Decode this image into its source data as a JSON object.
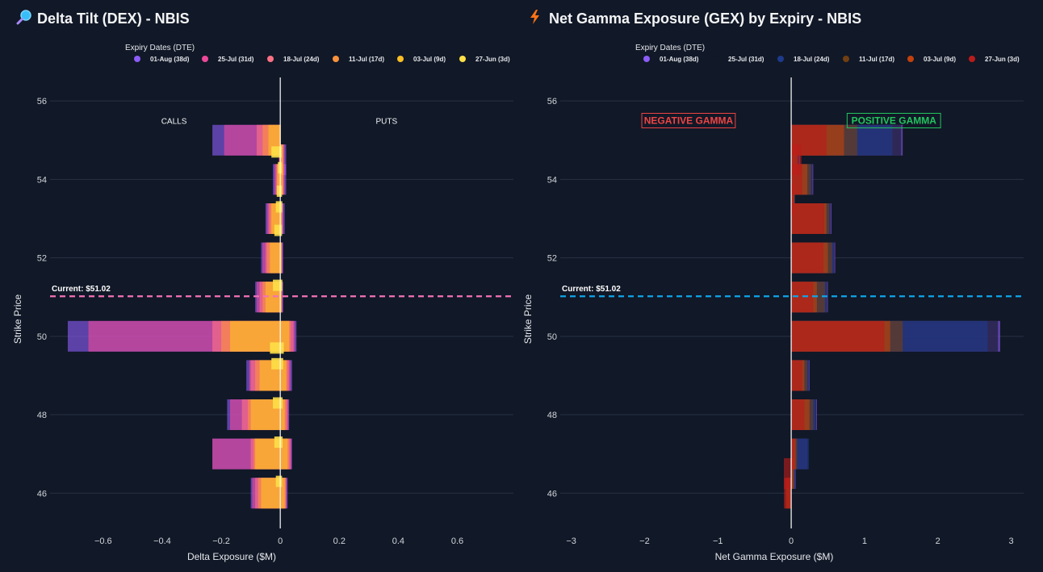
{
  "chart_data": [
    {
      "type": "bar",
      "orientation": "horizontal",
      "barmode": "overlay",
      "title": "Delta Tilt (DEX) - NBIS",
      "title_icon": "magnifier-icon",
      "xlabel": "Delta Exposure ($M)",
      "ylabel": "Strike Price",
      "xlim": [
        -0.78,
        0.79
      ],
      "ylim": [
        45.1,
        56.6
      ],
      "xticks": [
        -0.6,
        -0.4,
        -0.2,
        0,
        0.2,
        0.4,
        0.6
      ],
      "xtick_labels": [
        "−0.6",
        "−0.4",
        "−0.2",
        "0",
        "0.2",
        "0.4",
        "0.6"
      ],
      "yticks": [
        46,
        48,
        50,
        52,
        54,
        56
      ],
      "legend_title": "Expiry Dates (DTE)",
      "legend_placement": "top",
      "annotations": [
        {
          "text": "CALLS",
          "x": -0.36,
          "y": 55.5
        },
        {
          "text": "PUTS",
          "x": 0.36,
          "y": 55.5
        }
      ],
      "current_price": {
        "label": "Current: $51.02",
        "value": 51.02,
        "color": "#f472b6"
      },
      "series": [
        {
          "name": "01-Aug (38d)",
          "color": "#8b5cf6",
          "x": [
            -0.23,
            0.01,
            -0.025,
            -0.05,
            -0.065,
            -0.085,
            -0.72,
            -0.115,
            -0.18,
            -0.23,
            -0.1,
            -0.01,
            0.02,
            0.02,
            0.015,
            0.01,
            0.01,
            0.055,
            0.04,
            0.03,
            0.04,
            0.025
          ],
          "y": [
            55,
            54.5,
            54,
            53,
            52,
            51,
            50,
            49,
            48,
            47,
            46,
            55,
            54.5,
            54,
            53,
            52,
            51,
            50,
            49,
            48,
            47,
            46
          ]
        },
        {
          "name": "25-Jul (31d)",
          "color": "#ec4899",
          "x": [
            -0.19,
            -0.005,
            -0.02,
            -0.045,
            -0.06,
            -0.08,
            -0.65,
            -0.105,
            -0.17,
            -0.23,
            -0.095,
            -0.005,
            0.015,
            0.015,
            0.01,
            0.008,
            0.008,
            0.05,
            0.035,
            0.028,
            0.038,
            0.022
          ],
          "y": [
            55,
            54.5,
            54,
            53,
            52,
            51,
            50,
            49,
            48,
            47,
            46,
            55,
            54.5,
            54,
            53,
            52,
            51,
            50,
            49,
            48,
            47,
            46
          ]
        },
        {
          "name": "18-Jul (24d)",
          "color": "#fb7185",
          "x": [
            -0.08,
            -0.003,
            -0.015,
            -0.04,
            -0.05,
            -0.07,
            -0.23,
            -0.1,
            -0.13,
            -0.1,
            -0.085,
            -0.003,
            0.012,
            0.012,
            0.008,
            0.006,
            0.006,
            0.045,
            0.03,
            0.025,
            0.035,
            0.02
          ],
          "y": [
            55,
            54.5,
            54,
            53,
            52,
            51,
            50,
            49,
            48,
            47,
            46,
            55,
            54.5,
            54,
            53,
            52,
            51,
            50,
            49,
            48,
            47,
            46
          ]
        },
        {
          "name": "11-Jul (17d)",
          "color": "#fb923c",
          "x": [
            -0.06,
            -0.002,
            -0.012,
            -0.035,
            -0.045,
            -0.06,
            -0.2,
            -0.085,
            -0.11,
            -0.09,
            -0.075,
            -0.002,
            0.01,
            0.01,
            0.006,
            0.005,
            0.005,
            0.035,
            0.025,
            0.02,
            0.03,
            0.018
          ],
          "y": [
            55,
            54.5,
            54,
            53,
            52,
            51,
            50,
            49,
            48,
            47,
            46,
            55,
            54.5,
            54,
            53,
            52,
            51,
            50,
            49,
            48,
            47,
            46
          ]
        },
        {
          "name": "03-Jul (9d)",
          "color": "#fbbf24",
          "x": [
            -0.04,
            -0.002,
            -0.01,
            -0.03,
            -0.035,
            -0.05,
            -0.17,
            -0.07,
            -0.1,
            -0.085,
            -0.065,
            -0.001,
            0.008,
            0.008,
            0.005,
            0.004,
            0.004,
            0.03,
            0.02,
            0.015,
            0.025,
            0.015
          ],
          "y": [
            55,
            54.5,
            54,
            53,
            52,
            51,
            50,
            49,
            48,
            47,
            46,
            55,
            54.5,
            54,
            53,
            52,
            51,
            50,
            49,
            48,
            47,
            46
          ]
        },
        {
          "name": "27-Jun (3d)",
          "color": "#fde047",
          "x": [
            -0.03,
            -0.008,
            -0.012,
            -0.015,
            -0.02,
            -0.025,
            -0.035,
            -0.03,
            -0.025,
            -0.02,
            -0.015,
            0.005,
            0.006,
            0.006,
            0.007,
            0.006,
            0.007,
            0.012,
            0.01,
            0.008,
            0.008,
            0.006
          ],
          "y": [
            54.7,
            54.3,
            53.7,
            53.3,
            52.7,
            51.3,
            49.7,
            49.3,
            48.3,
            47.3,
            46.3,
            54.7,
            54.3,
            53.7,
            53.3,
            52.7,
            51.3,
            49.7,
            49.3,
            48.3,
            47.3,
            46.3
          ]
        }
      ]
    },
    {
      "type": "bar",
      "orientation": "horizontal",
      "barmode": "overlay",
      "title": "Net Gamma Exposure (GEX) by Expiry - NBIS",
      "title_icon": "lightning-icon",
      "xlabel": "Net Gamma Exposure ($M)",
      "ylabel": "Strike Price",
      "xlim": [
        -3.15,
        3.17
      ],
      "ylim": [
        45.1,
        56.6
      ],
      "xticks": [
        -3,
        -2,
        -1,
        0,
        1,
        2,
        3
      ],
      "xtick_labels": [
        "−3",
        "−2",
        "−1",
        "0",
        "1",
        "2",
        "3"
      ],
      "yticks": [
        46,
        48,
        50,
        52,
        54,
        56
      ],
      "legend_title": "Expiry Dates (DTE)",
      "legend_placement": "top",
      "annotations": [
        {
          "text": "NEGATIVE GAMMA",
          "color": "#ef4444",
          "x": -1.4,
          "y": 55.5
        },
        {
          "text": "POSITIVE GAMMA",
          "color": "#22c55e",
          "x": 1.4,
          "y": 55.5
        }
      ],
      "current_price": {
        "label": "Current: $51.02",
        "value": 51.02,
        "color": "#0ea5e9"
      },
      "series": [
        {
          "name": "01-Aug (38d)",
          "color": "#8b5cf6",
          "x": [
            1.52,
            0.12,
            0.3,
            0.05,
            0.55,
            0.6,
            0.5,
            2.85,
            0.25,
            0.35,
            0.22,
            0.06,
            -0.03
          ],
          "y": [
            55,
            54.5,
            54,
            53.5,
            53,
            52,
            51,
            50,
            49,
            48,
            47,
            46.5,
            46
          ]
        },
        {
          "name": "25-Jul (31d)",
          "color": "#111827",
          "x": [
            1.5,
            0.11,
            0.29,
            0.05,
            0.54,
            0.59,
            0.49,
            2.82,
            0.24,
            0.34,
            0.22,
            0.05,
            -0.03
          ],
          "y": [
            55,
            54.5,
            54,
            53.5,
            53,
            52,
            51,
            50,
            49,
            48,
            47,
            46.5,
            46
          ]
        },
        {
          "name": "18-Jul (24d)",
          "color": "#1e3a8a",
          "x": [
            1.38,
            0.1,
            0.28,
            0.05,
            0.53,
            0.58,
            0.48,
            2.68,
            0.24,
            0.33,
            0.24,
            0.05,
            -0.03
          ],
          "y": [
            55,
            54.5,
            54,
            53.5,
            53,
            52,
            51,
            50,
            49,
            48,
            47,
            46.5,
            46
          ]
        },
        {
          "name": "11-Jul (17d)",
          "color": "#713f12",
          "x": [
            0.9,
            0.09,
            0.27,
            0.05,
            0.52,
            0.56,
            0.46,
            1.52,
            0.22,
            0.3,
            0.08,
            0.04,
            -0.06
          ],
          "y": [
            55,
            54.5,
            54,
            53.5,
            53,
            52,
            51,
            50,
            49,
            48,
            47,
            46.5,
            46
          ]
        },
        {
          "name": "03-Jul (9d)",
          "color": "#c2410c",
          "x": [
            0.72,
            0.08,
            0.22,
            0.04,
            0.48,
            0.5,
            0.35,
            1.35,
            0.18,
            0.25,
            0.06,
            0.03,
            -0.08
          ],
          "y": [
            55,
            54.5,
            54,
            53.5,
            53,
            52,
            51,
            50,
            49,
            48,
            47,
            46.5,
            46
          ]
        },
        {
          "name": "27-Jun (3d)",
          "color": "#b91c1c",
          "x": [
            0.48,
            0.14,
            0.15,
            0.04,
            0.45,
            0.44,
            0.3,
            1.27,
            0.15,
            0.18,
            0.05,
            -0.1,
            -0.1
          ],
          "y": [
            55,
            54.5,
            54,
            53.5,
            53,
            52,
            51,
            50,
            49,
            48,
            47,
            46.5,
            46
          ]
        }
      ]
    }
  ]
}
